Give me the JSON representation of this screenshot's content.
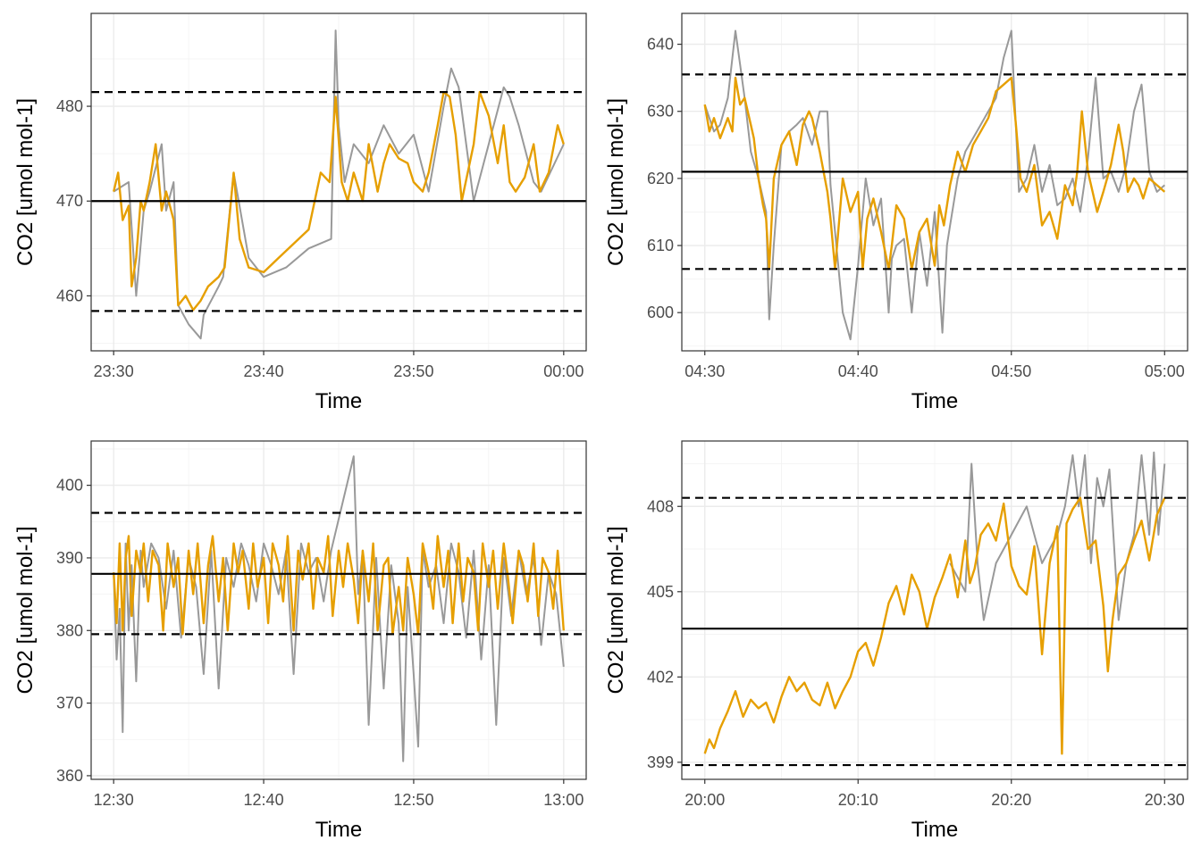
{
  "colors": {
    "raw": "#999999",
    "filtered": "#E69F00",
    "reference": "#000000"
  },
  "chart_data": [
    {
      "type": "line",
      "xlabel": "Time",
      "ylabel": "CO2 [umol mol-1]",
      "x_ticks": [
        "23:30",
        "23:40",
        "23:50",
        "00:00"
      ],
      "y_ticks": [
        460,
        470,
        480
      ],
      "ylim": [
        454.2,
        489.8
      ],
      "mean": 470.0,
      "lower_bound": 458.4,
      "upper_bound": 481.5,
      "series": [
        {
          "style": "raw",
          "x": [
            0,
            1,
            1.5,
            2,
            2.4,
            3.2,
            3.5,
            4,
            4.3,
            5,
            5.8,
            6,
            7,
            7.3,
            8,
            9,
            10,
            11.5,
            13,
            14.5,
            14.8,
            15,
            15.4,
            16,
            17,
            18,
            19,
            20,
            21,
            22,
            22.5,
            23,
            24,
            25,
            26,
            26.4,
            27,
            28,
            28.5,
            30
          ],
          "y": [
            471,
            472,
            460,
            469,
            471,
            476,
            469,
            472,
            459,
            457,
            455.5,
            458,
            461,
            462,
            473,
            464,
            462,
            463,
            465,
            466,
            488,
            478,
            472,
            476,
            474,
            478,
            475,
            477,
            471,
            480,
            484,
            482,
            470,
            476,
            482,
            481,
            478,
            472,
            471,
            476
          ]
        },
        {
          "style": "filtered",
          "x": [
            0,
            0.3,
            0.6,
            1,
            1.2,
            1.5,
            1.8,
            2,
            2.4,
            2.8,
            3.2,
            3.5,
            4,
            4.3,
            4.8,
            5.3,
            5.8,
            6.3,
            7,
            7.4,
            8,
            8.4,
            9,
            10,
            11,
            12,
            13,
            13.8,
            14.4,
            14.8,
            15.2,
            15.6,
            16,
            16.6,
            17,
            17.6,
            18,
            18.4,
            19,
            19.6,
            20,
            20.6,
            21,
            21.6,
            22,
            22.4,
            22.8,
            23.2,
            24,
            24.4,
            25,
            25.6,
            26,
            26.4,
            26.8,
            27.4,
            28,
            28.4,
            29,
            29.6,
            30
          ],
          "y": [
            471,
            473,
            468,
            469.5,
            461,
            464,
            470,
            469,
            472,
            476,
            469,
            471,
            468,
            459,
            460,
            458.5,
            459.5,
            461,
            462,
            463,
            473,
            466,
            463,
            462.5,
            464,
            465.5,
            467,
            473,
            472,
            481,
            472,
            470,
            473,
            470,
            476,
            471,
            474,
            476,
            474.5,
            474,
            472,
            471,
            473,
            478,
            481.5,
            481,
            477,
            470,
            476,
            481.5,
            479,
            474,
            478,
            472,
            471,
            472.5,
            476,
            471,
            473,
            478,
            476
          ]
        }
      ]
    },
    {
      "type": "line",
      "xlabel": "Time",
      "ylabel": "CO2 [umol mol-1]",
      "x_ticks": [
        "04:30",
        "04:40",
        "04:50",
        "05:00"
      ],
      "y_ticks": [
        600,
        610,
        620,
        630,
        640
      ],
      "ylim": [
        594.3,
        644.6
      ],
      "mean": 621.0,
      "lower_bound": 606.5,
      "upper_bound": 635.5,
      "series": [
        {
          "style": "raw",
          "x": [
            0,
            0.6,
            1,
            1.5,
            2,
            2.3,
            2.6,
            3,
            3.5,
            4,
            4.2,
            4.5,
            5,
            5.5,
            6,
            6.4,
            7,
            7.5,
            8,
            8.2,
            8.5,
            9,
            9.5,
            10,
            10.5,
            11,
            11.5,
            12,
            12.2,
            12.5,
            13,
            13.5,
            14,
            14.5,
            15,
            15.5,
            15.8,
            16,
            16.5,
            17,
            17.5,
            18,
            18.5,
            19,
            19.5,
            20,
            20.5,
            21,
            21.5,
            22,
            22.5,
            23,
            23.5,
            24,
            24.5,
            25,
            25.5,
            26,
            26.5,
            27,
            27.5,
            28,
            28.5,
            29,
            29.5,
            30
          ],
          "y": [
            631,
            627,
            628,
            632,
            642,
            637,
            632,
            624,
            620,
            615,
            599,
            610,
            625,
            627,
            628,
            629,
            625,
            630,
            630,
            619,
            612,
            600,
            596,
            607,
            620,
            613,
            617,
            600,
            608,
            610,
            611,
            600,
            612,
            604,
            615,
            597,
            610,
            613,
            620,
            624,
            626,
            628,
            630,
            632,
            638,
            642,
            618,
            620,
            625,
            618,
            622,
            616,
            617,
            620,
            615,
            623,
            635,
            620,
            621,
            618,
            622,
            630,
            634,
            621,
            618,
            619
          ]
        },
        {
          "style": "filtered",
          "x": [
            0,
            0.3,
            0.6,
            1,
            1.5,
            1.8,
            2,
            2.3,
            2.6,
            3,
            3.2,
            3.5,
            3.8,
            4,
            4.2,
            4.5,
            5,
            5.5,
            6,
            6.4,
            6.8,
            7,
            7.5,
            8,
            8.2,
            8.5,
            9,
            9.5,
            10,
            10.3,
            10.6,
            11,
            11.5,
            12,
            12.2,
            12.5,
            13,
            13.5,
            14,
            14.5,
            15,
            15.3,
            15.6,
            16,
            16.5,
            17,
            17.5,
            18,
            18.5,
            19,
            19.5,
            20,
            20.3,
            20.6,
            21,
            21.5,
            22,
            22.5,
            23,
            23.5,
            24,
            24.3,
            24.6,
            25,
            25.3,
            25.6,
            26,
            26.5,
            27,
            27.3,
            27.6,
            28,
            28.3,
            28.6,
            29,
            29.5,
            30
          ],
          "y": [
            631,
            627,
            629,
            626,
            629,
            627,
            635,
            631,
            632,
            628,
            626,
            620,
            616,
            614,
            606.5,
            620,
            625,
            627,
            622,
            628,
            630,
            629,
            624,
            618,
            614,
            606.5,
            620,
            615,
            618,
            606.5,
            614,
            617,
            612,
            606.5,
            610,
            616,
            614,
            606.5,
            612,
            614,
            607,
            616,
            613,
            619,
            624,
            621,
            625,
            627,
            629,
            633,
            634,
            635,
            628,
            620,
            618,
            622,
            613,
            615,
            611,
            619,
            616,
            621,
            630,
            621,
            618,
            615,
            618,
            622,
            628,
            624,
            618,
            620,
            619,
            617,
            620,
            619,
            618
          ]
        }
      ]
    },
    {
      "type": "line",
      "xlabel": "Time",
      "ylabel": "CO2 [umol mol-1]",
      "x_ticks": [
        "12:30",
        "12:40",
        "12:50",
        "13:00"
      ],
      "y_ticks": [
        360,
        370,
        380,
        390,
        400
      ],
      "ylim": [
        359.5,
        406.1
      ],
      "mean": 387.8,
      "lower_bound": 379.5,
      "upper_bound": 396.2,
      "series": [
        {
          "style": "raw",
          "x": [
            0,
            0.2,
            0.4,
            0.6,
            0.8,
            1,
            1.2,
            1.5,
            1.8,
            2,
            2.5,
            3,
            3.5,
            4,
            4.5,
            5,
            5.5,
            6,
            6.5,
            7,
            7.5,
            8,
            8.5,
            9,
            9.5,
            10,
            10.5,
            11,
            11.5,
            12,
            12.5,
            13,
            13.5,
            14,
            14.5,
            16,
            16.3,
            16.6,
            17,
            17.5,
            18,
            18.5,
            19,
            19.3,
            19.6,
            20,
            20.3,
            20.6,
            21,
            21.5,
            22,
            22.5,
            23,
            23.5,
            24,
            24.5,
            25,
            25.5,
            26,
            26.5,
            27,
            27.5,
            28,
            28.5,
            29,
            29.5,
            30
          ],
          "y": [
            388,
            376,
            383,
            366,
            392,
            380,
            389,
            373,
            391,
            386,
            392,
            390,
            383,
            391,
            379,
            390,
            386,
            374,
            391,
            372,
            390,
            386,
            392,
            389,
            384,
            392,
            389,
            385,
            391,
            374,
            392,
            388,
            390,
            384,
            391,
            404,
            385,
            391,
            367,
            390,
            372,
            389,
            381,
            362,
            386,
            374,
            364,
            391,
            386,
            389,
            381,
            392,
            388,
            379,
            391,
            376,
            389,
            367,
            390,
            382,
            391,
            385,
            390,
            378,
            388,
            385,
            375
          ]
        },
        {
          "style": "filtered",
          "x": [
            0,
            0.2,
            0.4,
            0.6,
            0.8,
            1,
            1.2,
            1.5,
            1.8,
            2,
            2.3,
            2.6,
            3,
            3.3,
            3.6,
            4,
            4.3,
            4.6,
            5,
            5.3,
            5.6,
            6,
            6.3,
            6.6,
            7,
            7.3,
            7.6,
            8,
            8.3,
            8.6,
            9,
            9.3,
            9.6,
            10,
            10.3,
            10.6,
            11,
            11.3,
            11.6,
            12,
            12.3,
            12.6,
            13,
            13.3,
            13.6,
            14,
            14.3,
            14.6,
            15,
            15.3,
            15.6,
            16,
            16.3,
            16.6,
            17,
            17.3,
            17.6,
            18,
            18.3,
            18.6,
            19,
            19.3,
            19.6,
            20,
            20.3,
            20.6,
            21,
            21.3,
            21.6,
            22,
            22.3,
            22.6,
            23,
            23.3,
            23.6,
            24,
            24.3,
            24.6,
            25,
            25.3,
            25.6,
            26,
            26.3,
            26.6,
            27,
            27.3,
            27.6,
            28,
            28.3,
            28.6,
            29,
            29.3,
            29.6,
            30
          ],
          "y": [
            388,
            381,
            392,
            380,
            390,
            393,
            382,
            391,
            388,
            392,
            384,
            391,
            389,
            380,
            392,
            386,
            390,
            379.5,
            391,
            385,
            392,
            381,
            389,
            393,
            384,
            390,
            380,
            392,
            388,
            391,
            383,
            392,
            386,
            390,
            381,
            392,
            389,
            384,
            393,
            380,
            391,
            387,
            392,
            383,
            390,
            388,
            393,
            382,
            391,
            386,
            392,
            387,
            381,
            391,
            384,
            392,
            380,
            389,
            390,
            379.5,
            386,
            380,
            390,
            385,
            379.5,
            392,
            388,
            383,
            393,
            386,
            391,
            381,
            392,
            384,
            390,
            388,
            380,
            392,
            386,
            391,
            383,
            392,
            387,
            381,
            391,
            389,
            384,
            392,
            382,
            390,
            388,
            383,
            391,
            380
          ]
        }
      ]
    },
    {
      "type": "line",
      "xlabel": "Time",
      "ylabel": "CO2 [umol mol-1]",
      "x_ticks": [
        "20:00",
        "20:10",
        "20:20",
        "20:30"
      ],
      "y_ticks": [
        399,
        402,
        405,
        408
      ],
      "ylim": [
        398.4,
        410.3
      ],
      "mean": 403.7,
      "lower_bound": 398.9,
      "upper_bound": 408.3,
      "series": [
        {
          "style": "raw",
          "x": [
            16,
            17,
            17.4,
            17.8,
            18.2,
            19,
            20,
            21,
            22,
            23,
            23.5,
            24,
            24.4,
            24.8,
            25.2,
            25.6,
            26,
            26.4,
            27,
            27.5,
            28,
            28.5,
            29,
            29.3,
            29.6,
            30
          ],
          "y": [
            406,
            405,
            409.5,
            406,
            404,
            406,
            407,
            408,
            406,
            407,
            408,
            409.8,
            408,
            409.8,
            406,
            409,
            408,
            409.3,
            404,
            406,
            407,
            409.8,
            407,
            409.9,
            407,
            409.5
          ]
        },
        {
          "style": "filtered",
          "x": [
            0,
            0.3,
            0.6,
            1,
            1.5,
            2,
            2.5,
            3,
            3.5,
            4,
            4.5,
            5,
            5.5,
            6,
            6.5,
            7,
            7.5,
            8,
            8.5,
            9,
            9.5,
            10,
            10.5,
            11,
            11.5,
            12,
            12.5,
            13,
            13.5,
            14,
            14.5,
            15,
            15.5,
            16,
            16.5,
            17,
            17.3,
            17.6,
            18,
            18.5,
            19,
            19.5,
            20,
            20.5,
            21,
            21.5,
            22,
            22.5,
            23,
            23.3,
            23.6,
            24,
            24.5,
            25,
            25.5,
            26,
            26.3,
            26.6,
            27,
            27.5,
            28,
            28.5,
            29,
            29.5,
            30
          ],
          "y": [
            399.3,
            399.8,
            399.5,
            400.2,
            400.8,
            401.5,
            400.6,
            401.2,
            400.9,
            401.1,
            400.4,
            401.3,
            402,
            401.5,
            401.8,
            401.2,
            401,
            401.8,
            400.9,
            401.5,
            402,
            402.9,
            403.2,
            402.4,
            403.4,
            404.6,
            405.2,
            404.2,
            405.6,
            405,
            403.7,
            404.8,
            405.5,
            406.3,
            404.8,
            406.8,
            405.3,
            405.8,
            407,
            407.4,
            406.8,
            408.1,
            405.9,
            405.2,
            404.9,
            406.6,
            402.8,
            406,
            407.3,
            399.3,
            407.4,
            407.9,
            408.3,
            406.5,
            406.8,
            404.5,
            402.2,
            404,
            405.6,
            406,
            406.8,
            407.5,
            406.1,
            407.7,
            408.3
          ]
        }
      ]
    }
  ]
}
